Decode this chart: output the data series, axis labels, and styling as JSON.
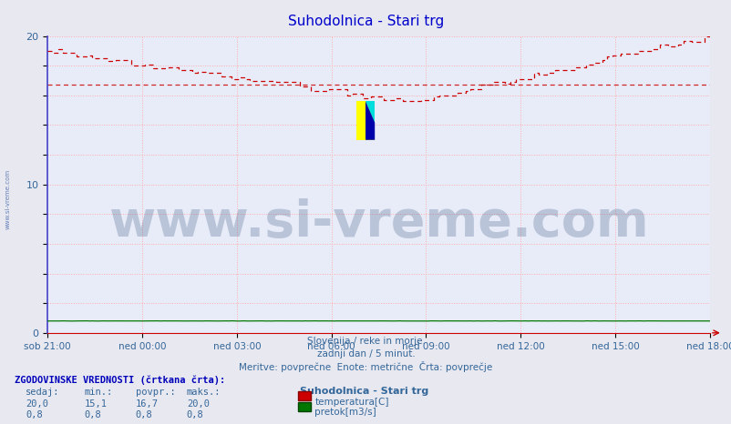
{
  "title": "Suhodolnica - Stari trg",
  "title_color": "#0000cc",
  "bg_color": "#e8e8f0",
  "plot_bg_color": "#e8ecf8",
  "grid_color": "#ffaaaa",
  "xlim_hours": 21,
  "ylim": [
    0,
    20
  ],
  "ytick_vals": [
    0,
    2,
    4,
    6,
    8,
    10,
    12,
    14,
    16,
    18,
    20
  ],
  "ytick_show": [
    0,
    10,
    20
  ],
  "xtick_positions": [
    0,
    3,
    6,
    9,
    12,
    15,
    18,
    21
  ],
  "xtick_labels": [
    "sob 21:00",
    "ned 00:00",
    "ned 03:00",
    "ned 06:00",
    "ned 09:00",
    "ned 12:00",
    "ned 15:00",
    "ned 18:00"
  ],
  "temp_avg_line": 16.7,
  "temp_color": "#cc0000",
  "flow_color": "#007700",
  "watermark_text": "www.si-vreme.com",
  "watermark_color": "#1a3a6a",
  "watermark_alpha": 0.22,
  "watermark_fontsize": 40,
  "sub_text1": "Slovenija / reke in morje.",
  "sub_text2": "zadnji dan / 5 minut.",
  "sub_text3": "Meritve: povprečne  Enote: metrične  Črta: povprečje",
  "sub_color": "#336699",
  "left_watermark": "www.si-vreme.com",
  "legend_title": "Suhodolnica - Stari trg",
  "legend_label1": "temperatura[C]",
  "legend_label2": "pretok[m3/s]",
  "table_header": "ZGODOVINSKE VREDNOSTI (črtkana črta):",
  "table_col1": "sedaj:",
  "table_col2": "min.:",
  "table_col3": "povpr.:",
  "table_col4": "maks.:",
  "temp_sedaj": "20,0",
  "temp_min": "15,1",
  "temp_povpr": "16,7",
  "temp_maks": "20,0",
  "flow_sedaj": "0,8",
  "flow_min": "0,8",
  "flow_povpr": "0,8",
  "flow_maks": "0,8"
}
